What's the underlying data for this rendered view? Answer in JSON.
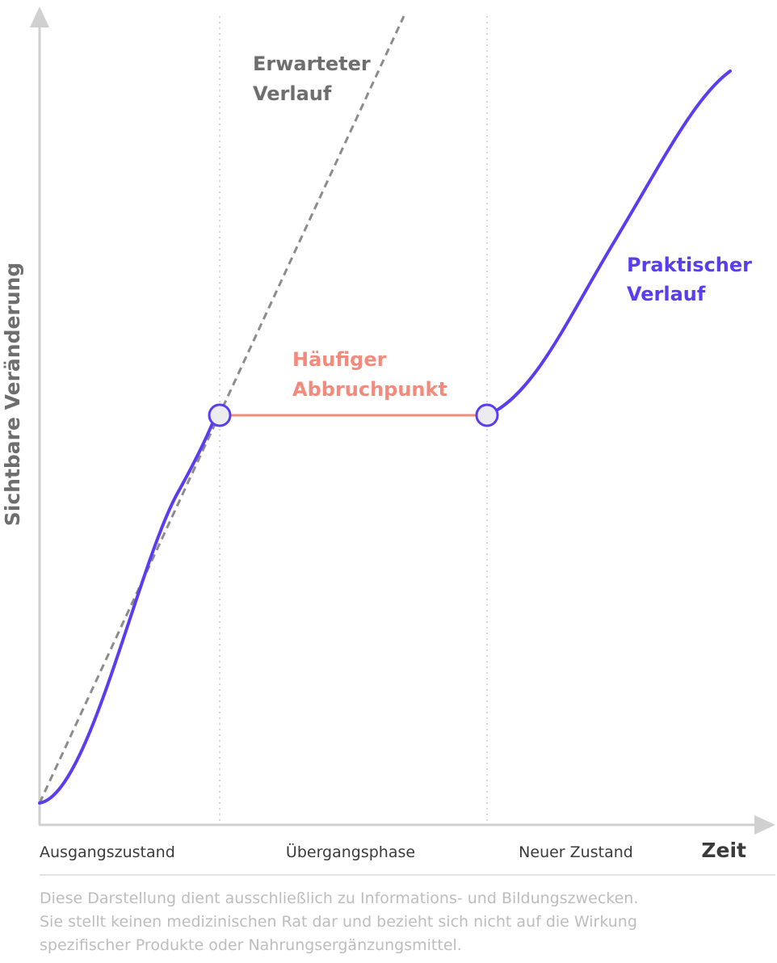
{
  "axes": {
    "y_label": "Sichtbare Veränderung",
    "x_label": "Zeit"
  },
  "phases": [
    "Ausgangszustand",
    "Übergangsphase",
    "Neuer Zustand"
  ],
  "curves": {
    "expected": {
      "label_line1": "Erwarteter",
      "label_line2": "Verlauf"
    },
    "practical": {
      "label_line1": "Praktischer",
      "label_line2": "Verlauf"
    },
    "plateau": {
      "label_line1": "Häufiger",
      "label_line2": "Abbruchpunkt"
    }
  },
  "colors": {
    "axis": "#d0d0d0",
    "practical": "#5b3df0",
    "expected": "#8c8c8c",
    "plateau": "#f28b7b",
    "axis_label": "#6e6e6e",
    "disclaimer": "#bdbdbd"
  },
  "disclaimer": [
    "Diese Darstellung dient ausschließlich zu Informations- und Bildungszwecken.",
    "Sie stellt keinen medizinischen Rat dar und bezieht sich nicht auf die Wirkung",
    "spezifischer Produkte oder Nahrungsergänzungsmittel."
  ]
}
